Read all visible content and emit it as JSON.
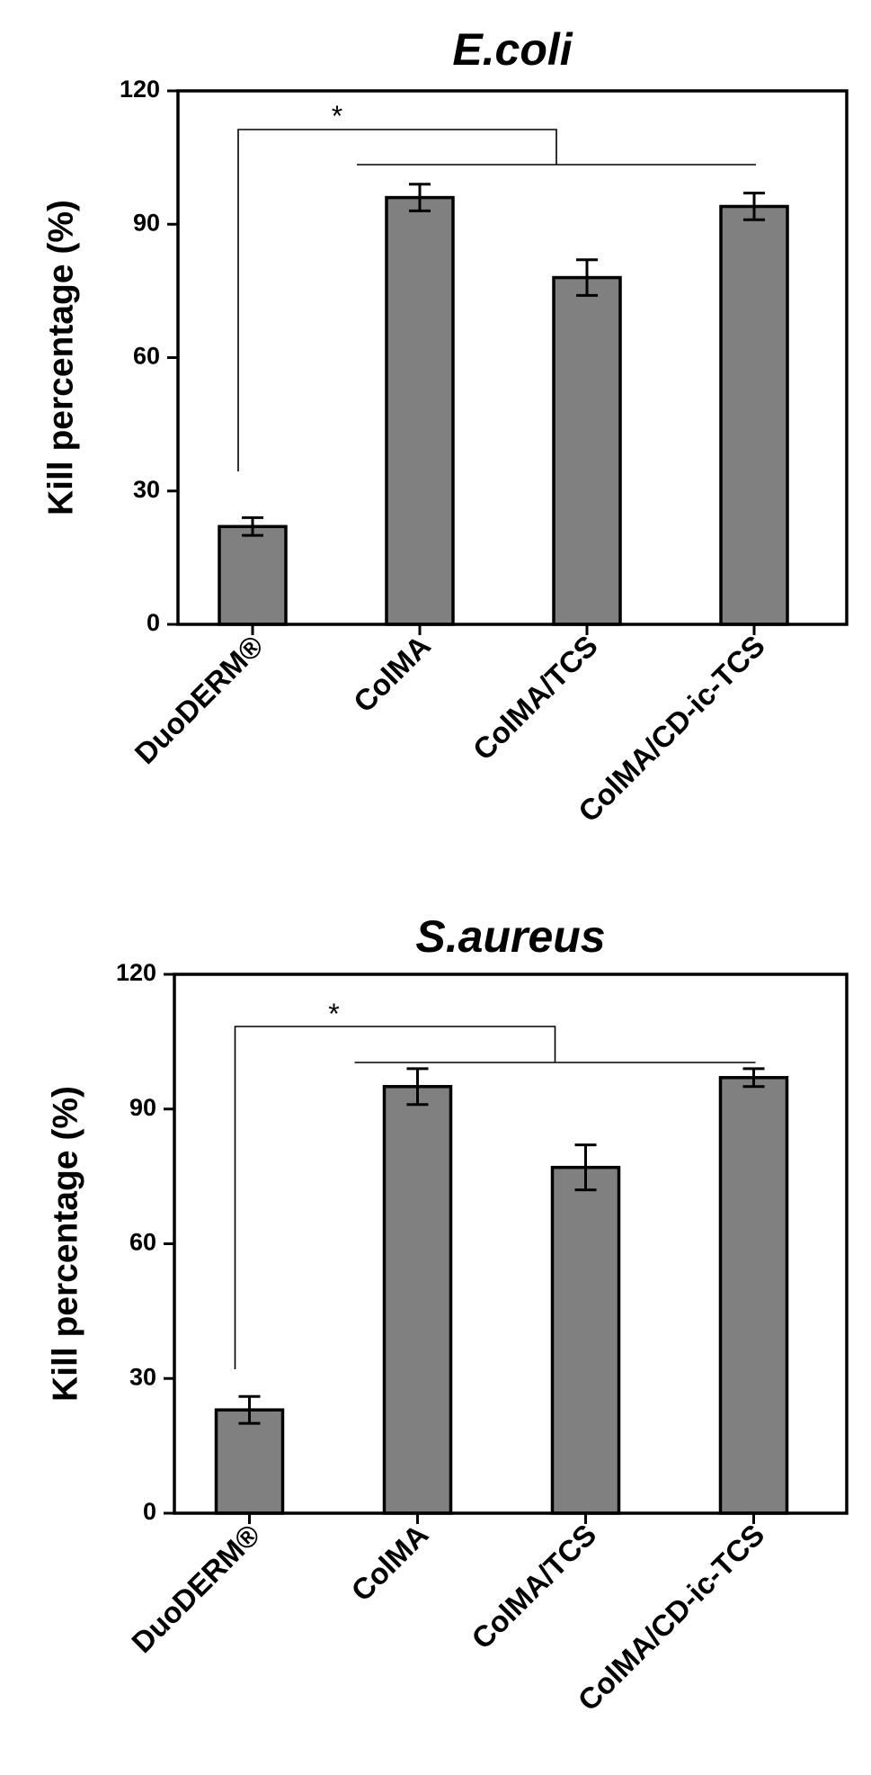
{
  "colors": {
    "bar_fill": "#808080",
    "bar_stroke": "#000000",
    "axis": "#000000",
    "background": "#ffffff"
  },
  "chart_data": [
    {
      "type": "bar",
      "title": "E.coli",
      "ylabel": "Kill percentage (%)",
      "xlabel": "",
      "categories": [
        "DuoDERM®",
        "ColMA",
        "ColMA/TCS",
        "ColMA/CD-ic-TCS"
      ],
      "values": [
        22,
        96,
        78,
        94
      ],
      "errors": [
        2,
        3,
        4,
        3
      ],
      "ylim": [
        0,
        120
      ],
      "yticks": [
        0,
        30,
        60,
        90,
        120
      ],
      "significance": {
        "label": "*",
        "group1": "DuoDERM®",
        "group2": [
          "ColMA",
          "ColMA/TCS",
          "ColMA/CD-ic-TCS"
        ]
      },
      "grid": false,
      "legend": "none"
    },
    {
      "type": "bar",
      "title": "S.aureus",
      "ylabel": "Kill percentage (%)",
      "xlabel": "",
      "categories": [
        "DuoDERM®",
        "ColMA",
        "ColMA/TCS",
        "ColMA/CD-ic-TCS"
      ],
      "values": [
        23,
        95,
        77,
        97
      ],
      "errors": [
        3,
        4,
        5,
        2
      ],
      "ylim": [
        0,
        120
      ],
      "yticks": [
        0,
        30,
        60,
        90,
        120
      ],
      "significance": {
        "label": "*",
        "group1": "DuoDERM®",
        "group2": [
          "ColMA",
          "ColMA/TCS",
          "ColMA/CD-ic-TCS"
        ]
      },
      "grid": false,
      "legend": "none"
    }
  ]
}
